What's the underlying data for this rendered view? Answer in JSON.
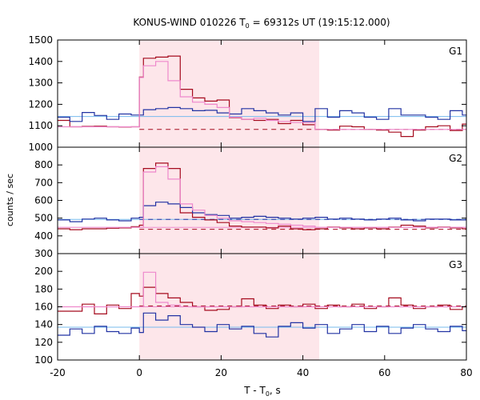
{
  "chart_data": {
    "type": "line",
    "title_parts": [
      "KONUS-WIND 010226 T",
      "0",
      " = 69312s UT (19:15:12.000)"
    ],
    "xlabel_parts": [
      "T - T",
      "0",
      ", s"
    ],
    "ylabel": "counts / sec",
    "xlim": [
      -20,
      80
    ],
    "xticks": [
      -20,
      0,
      20,
      40,
      60,
      80
    ],
    "grid": false,
    "shaded_interval": [
      0,
      44
    ],
    "shade_color": "#fde6ea",
    "colors": {
      "dark_red": "#a50b1e",
      "dark_blue": "#2233a3",
      "pink": "#ee88cc",
      "light_blue": "#77bbee"
    },
    "panels": [
      {
        "label": "G1",
        "ylim": [
          1000,
          1500
        ],
        "yticks": [
          1000,
          1100,
          1200,
          1300,
          1400,
          1500
        ],
        "baselines": {
          "red_dashed": 1083,
          "blue_solid": 1143
        },
        "series": [
          {
            "color_key": "dark_red",
            "style": "step",
            "x": [
              -20,
              -17,
              -14,
              -11,
              -8,
              -5,
              -2,
              0,
              1,
              4,
              7,
              10,
              13,
              16,
              19,
              22,
              25,
              28,
              31,
              34,
              37,
              40,
              43,
              46,
              49,
              52,
              55,
              58,
              61,
              64,
              67,
              70,
              73,
              76,
              79,
              80
            ],
            "y": [
              1125,
              1095,
              1097,
              1098,
              1095,
              1094,
              1095,
              1327,
              1415,
              1420,
              1425,
              1270,
              1230,
              1215,
              1220,
              1138,
              1130,
              1125,
              1130,
              1110,
              1125,
              1105,
              1083,
              1080,
              1098,
              1095,
              1083,
              1080,
              1070,
              1050,
              1080,
              1095,
              1100,
              1078,
              1108,
              1108
            ]
          },
          {
            "color_key": "dark_blue",
            "style": "step",
            "x": [
              -20,
              -17,
              -14,
              -11,
              -8,
              -5,
              -2,
              1,
              4,
              7,
              10,
              13,
              16,
              19,
              22,
              25,
              28,
              31,
              34,
              37,
              40,
              43,
              46,
              49,
              52,
              55,
              58,
              61,
              64,
              67,
              70,
              73,
              76,
              79,
              80
            ],
            "y": [
              1140,
              1120,
              1162,
              1148,
              1130,
              1155,
              1150,
              1175,
              1180,
              1185,
              1180,
              1170,
              1172,
              1160,
              1155,
              1180,
              1170,
              1160,
              1150,
              1160,
              1120,
              1180,
              1140,
              1170,
              1160,
              1140,
              1130,
              1180,
              1150,
              1150,
              1140,
              1130,
              1170,
              1150,
              1150
            ]
          },
          {
            "color_key": "pink",
            "style": "step",
            "x": [
              -20,
              -17,
              -14,
              -11,
              -8,
              -5,
              -2,
              0,
              1,
              4,
              7,
              10,
              13,
              16,
              19,
              22,
              25,
              28,
              31,
              34,
              37,
              40,
              43,
              46,
              49,
              52,
              55,
              58,
              61,
              64,
              67,
              70,
              73,
              76,
              79,
              80
            ],
            "y": [
              1095,
              1095,
              1095,
              1095,
              1095,
              1095,
              1095,
              1325,
              1380,
              1400,
              1310,
              1235,
              1210,
              1200,
              1185,
              1140,
              1130,
              1135,
              1125,
              1120,
              1115,
              1115,
              1083,
              1083,
              1083,
              1083,
              1083,
              1083,
              1083,
              1083,
              1083,
              1083,
              1083,
              1083,
              1083,
              1083
            ]
          }
        ]
      },
      {
        "label": "G2",
        "ylim": [
          300,
          900
        ],
        "yticks": [
          300,
          400,
          500,
          600,
          700,
          800
        ],
        "baselines": {
          "red_dashed": 437,
          "blue_dashed": 493,
          "pink_solid": 448,
          "blue_solid": 493
        },
        "series": [
          {
            "color_key": "dark_red",
            "style": "step",
            "x": [
              -20,
              -17,
              -14,
              -11,
              -8,
              -5,
              -2,
              0,
              1,
              4,
              7,
              10,
              13,
              16,
              19,
              22,
              25,
              28,
              31,
              34,
              37,
              40,
              43,
              46,
              49,
              52,
              55,
              58,
              61,
              64,
              67,
              70,
              73,
              76,
              79,
              80
            ],
            "y": [
              440,
              435,
              440,
              440,
              443,
              445,
              452,
              460,
              780,
              810,
              780,
              530,
              505,
              490,
              475,
              455,
              450,
              450,
              445,
              455,
              440,
              435,
              440,
              450,
              445,
              440,
              445,
              440,
              450,
              460,
              455,
              445,
              450,
              445,
              440,
              440
            ]
          },
          {
            "color_key": "dark_blue",
            "style": "step",
            "x": [
              -20,
              -17,
              -14,
              -11,
              -8,
              -5,
              -2,
              0,
              1,
              4,
              7,
              10,
              13,
              16,
              19,
              22,
              25,
              28,
              31,
              34,
              37,
              40,
              43,
              46,
              49,
              52,
              55,
              58,
              61,
              64,
              67,
              70,
              73,
              76,
              79,
              80
            ],
            "y": [
              490,
              480,
              495,
              500,
              490,
              485,
              500,
              505,
              570,
              590,
              580,
              560,
              530,
              520,
              515,
              500,
              505,
              510,
              505,
              500,
              495,
              500,
              505,
              495,
              500,
              495,
              490,
              495,
              500,
              490,
              485,
              495,
              495,
              490,
              490,
              490
            ]
          },
          {
            "color_key": "pink",
            "style": "step",
            "x": [
              -20,
              -17,
              -14,
              -11,
              -8,
              -5,
              -2,
              0,
              1,
              4,
              7,
              10,
              13,
              16,
              19,
              22,
              25,
              28,
              31,
              34,
              37,
              40,
              43,
              46,
              49,
              52,
              55,
              58,
              61,
              64,
              67,
              70,
              73,
              76,
              79,
              80
            ],
            "y": [
              448,
              448,
              448,
              448,
              448,
              448,
              448,
              448,
              760,
              790,
              720,
              580,
              545,
              515,
              500,
              485,
              480,
              475,
              470,
              465,
              460,
              455,
              448,
              448,
              448,
              448,
              448,
              448,
              448,
              448,
              448,
              448,
              448,
              448,
              448,
              448
            ]
          }
        ]
      },
      {
        "label": "G3",
        "ylim": [
          100,
          220
        ],
        "yticks": [
          100,
          120,
          140,
          160,
          180,
          200
        ],
        "baselines": {
          "red_dashed": 161,
          "pink_solid": 160,
          "blue_solid": 137
        },
        "series": [
          {
            "color_key": "dark_red",
            "style": "step",
            "x": [
              -20,
              -17,
              -14,
              -11,
              -8,
              -5,
              -2,
              0,
              1,
              4,
              7,
              10,
              13,
              16,
              19,
              22,
              25,
              28,
              31,
              34,
              37,
              40,
              43,
              46,
              49,
              52,
              55,
              58,
              61,
              64,
              67,
              70,
              73,
              76,
              79,
              80
            ],
            "y": [
              155,
              155,
              163,
              152,
              162,
              158,
              175,
              172,
              182,
              175,
              170,
              165,
              160,
              156,
              157,
              160,
              169,
              162,
              158,
              162,
              160,
              163,
              158,
              162,
              160,
              163,
              158,
              160,
              170,
              162,
              158,
              160,
              162,
              157,
              160,
              160
            ]
          },
          {
            "color_key": "dark_blue",
            "style": "step",
            "x": [
              -20,
              -17,
              -14,
              -11,
              -8,
              -5,
              -2,
              0,
              1,
              4,
              7,
              10,
              13,
              16,
              19,
              22,
              25,
              28,
              31,
              34,
              37,
              40,
              43,
              46,
              49,
              52,
              55,
              58,
              61,
              64,
              67,
              70,
              73,
              76,
              79,
              80
            ],
            "y": [
              128,
              135,
              130,
              138,
              132,
              130,
              136,
              131,
              153,
              145,
              150,
              140,
              137,
              132,
              140,
              135,
              138,
              130,
              126,
              138,
              142,
              136,
              140,
              130,
              135,
              140,
              132,
              138,
              130,
              136,
              140,
              135,
              132,
              138,
              133,
              133
            ]
          },
          {
            "color_key": "pink",
            "style": "step",
            "x": [
              -20,
              -17,
              -14,
              -11,
              -8,
              -5,
              -2,
              0,
              1,
              4,
              7,
              10,
              13,
              16,
              19,
              22,
              25,
              28,
              31,
              34,
              37,
              40,
              43,
              46,
              49,
              52,
              55,
              58,
              61,
              64,
              67,
              70,
              73,
              76,
              79,
              80
            ],
            "y": [
              160,
              160,
              160,
              160,
              160,
              160,
              160,
              160,
              199,
              165,
              162,
              160,
              160,
              160,
              160,
              160,
              160,
              160,
              160,
              160,
              160,
              160,
              160,
              160,
              160,
              160,
              160,
              160,
              160,
              160,
              160,
              160,
              160,
              160,
              160,
              160
            ]
          }
        ]
      }
    ]
  }
}
